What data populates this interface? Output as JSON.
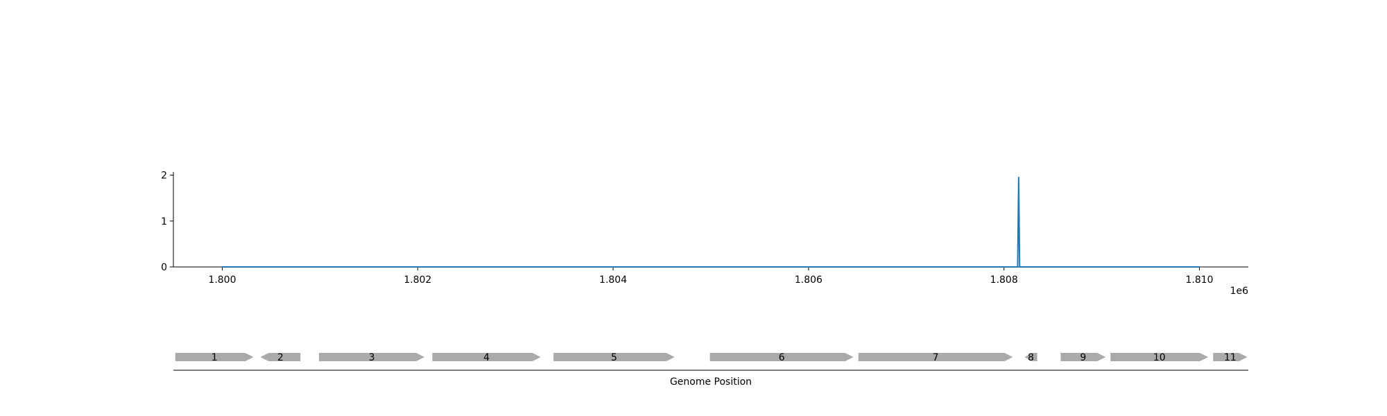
{
  "chart_data": {
    "type": "line",
    "title": "",
    "xlabel": "Genome Position",
    "ylabel": "",
    "x_offset_label": "1e6",
    "xlim": [
      1799500,
      1810500
    ],
    "ylim": [
      0,
      2.1
    ],
    "x_ticks": [
      1800000,
      1802000,
      1804000,
      1806000,
      1808000,
      1810000
    ],
    "x_tick_labels": [
      "1.800",
      "1.802",
      "1.804",
      "1.806",
      "1.808",
      "1.810"
    ],
    "y_ticks": [
      0,
      1,
      2
    ],
    "y_tick_labels": [
      "0",
      "1",
      "2"
    ],
    "grid": false,
    "legend": "none",
    "series": [
      {
        "color": "#1f77b4",
        "x": [
          1800000,
          1808140,
          1808150,
          1808160,
          1810000
        ],
        "y": [
          0,
          0,
          1.95,
          0,
          0
        ]
      }
    ],
    "gene_track": {
      "color": "#aaaaaa",
      "genes": [
        {
          "label": "1",
          "start": 1799520,
          "end": 1800320,
          "strand": "+"
        },
        {
          "label": "2",
          "start": 1800390,
          "end": 1800800,
          "strand": "-"
        },
        {
          "label": "3",
          "start": 1800990,
          "end": 1802070,
          "strand": "+"
        },
        {
          "label": "4",
          "start": 1802150,
          "end": 1803260,
          "strand": "+"
        },
        {
          "label": "5",
          "start": 1803390,
          "end": 1804630,
          "strand": "+"
        },
        {
          "label": "6",
          "start": 1804990,
          "end": 1806460,
          "strand": "+"
        },
        {
          "label": "7",
          "start": 1806510,
          "end": 1808090,
          "strand": "+"
        },
        {
          "label": "8",
          "start": 1808210,
          "end": 1808340,
          "strand": "-"
        },
        {
          "label": "9",
          "start": 1808580,
          "end": 1809040,
          "strand": "+"
        },
        {
          "label": "10",
          "start": 1809090,
          "end": 1810090,
          "strand": "+"
        },
        {
          "label": "11",
          "start": 1810140,
          "end": 1810490,
          "strand": "+"
        }
      ]
    }
  }
}
